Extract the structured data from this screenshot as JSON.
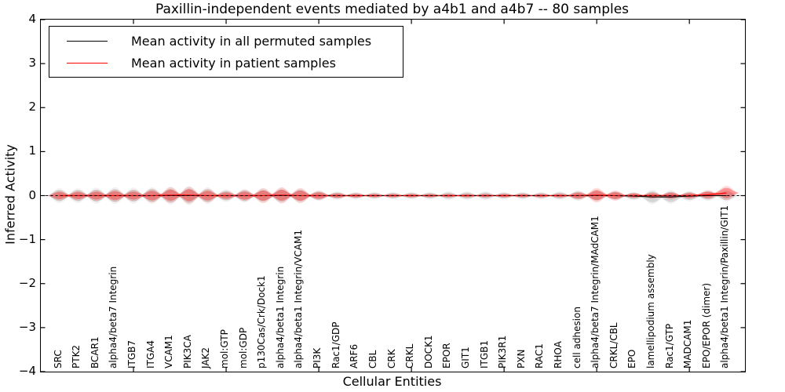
{
  "title": "Paxillin-independent events mediated by a4b1 and a4b7 -- 80 samples",
  "axes": {
    "xlabel": "Cellular Entities",
    "ylabel": "Inferred Activity",
    "yticks": [
      "4",
      "3",
      "2",
      "1",
      "0",
      "−1",
      "−2",
      "−3",
      "−4"
    ]
  },
  "legend": {
    "items": [
      {
        "label": "Mean activity in all permuted samples",
        "color": "#000000"
      },
      {
        "label": "Mean activity in patient samples",
        "color": "#ff0000"
      }
    ]
  },
  "chart_data": {
    "type": "violin",
    "title": "Paxillin-independent events mediated by a4b1 and a4b7 -- 80 samples",
    "xlabel": "Cellular Entities",
    "ylabel": "Inferred Activity",
    "ylim": [
      -4,
      4
    ],
    "xlim": [
      0,
      38
    ],
    "grid": false,
    "legend_position": "upper left",
    "xticks_every": 5,
    "zero_line": {
      "y": 0,
      "style": "dashed",
      "color": "#000000"
    },
    "categories": [
      "SRC",
      "PTK2",
      "BCAR1",
      "alpha4/beta7 Integrin",
      "ITGB7",
      "ITGA4",
      "VCAM1",
      "PIK3CA",
      "JAK2",
      "mol:GTP",
      "mol:GDP",
      "p130Cas/Crk/Dock1",
      "alpha4/beta1 Integrin",
      "alpha4/beta1 Integrin/VCAM1",
      "PI3K",
      "Rac1/GDP",
      "ARF6",
      "CBL",
      "CRK",
      "CRKL",
      "DOCK1",
      "EPOR",
      "GIT1",
      "ITGB1",
      "PIK3R1",
      "PXN",
      "RAC1",
      "RHOA",
      "cell adhesion",
      "alpha4/beta7 Integrin/MAdCAM1",
      "CRKL/CBL",
      "EPO",
      "lamellipodium assembly",
      "Rac1/GTP",
      "MADCAM1",
      "EPO/EPOR (dimer)",
      "alpha4/beta1 Integrin/Paxillin/GIT1"
    ],
    "series": [
      {
        "name": "Mean activity in all permuted samples",
        "line_color": "#000000",
        "fill_core": "rgba(0,0,0,0.115)",
        "fill_halo": "rgba(0,0,0,0.055)",
        "mean": [
          0,
          0,
          0,
          0,
          0,
          0,
          0,
          0,
          0,
          0,
          0,
          0,
          0,
          0,
          0,
          0,
          0,
          0,
          0,
          0,
          0,
          0,
          0,
          0,
          0,
          0,
          0,
          0,
          0,
          0,
          0,
          -0.01,
          -0.03,
          -0.03,
          -0.01,
          0,
          0
        ],
        "halfwidth": [
          0.125,
          0.125,
          0.134,
          0.143,
          0.134,
          0.143,
          0.151,
          0.16,
          0.143,
          0.107,
          0.116,
          0.125,
          0.134,
          0.125,
          0.089,
          0.071,
          0.062,
          0.062,
          0.062,
          0.062,
          0.062,
          0.071,
          0.071,
          0.071,
          0.062,
          0.062,
          0.062,
          0.071,
          0.089,
          0.098,
          0.08,
          0.071,
          0.125,
          0.116,
          0.089,
          0.089,
          0.098
        ]
      },
      {
        "name": "Mean activity in patient samples",
        "line_color": "#ff0000",
        "fill_core": "rgba(255,0,0,0.32)",
        "fill_halo": "rgba(255,0,0,0.13)",
        "mean": [
          0,
          0,
          0,
          0,
          0,
          0,
          0.01,
          0.01,
          0,
          0,
          0,
          0,
          0.01,
          0,
          0,
          0,
          0,
          0,
          0,
          0,
          0,
          0,
          0,
          0,
          0,
          0,
          0,
          0,
          0,
          0.01,
          0,
          0,
          0,
          0,
          0,
          0.02,
          0.06
        ],
        "halfwidth": [
          0.08,
          0.08,
          0.089,
          0.098,
          0.089,
          0.107,
          0.125,
          0.134,
          0.107,
          0.071,
          0.089,
          0.116,
          0.125,
          0.116,
          0.071,
          0.045,
          0.036,
          0.032,
          0.032,
          0.032,
          0.032,
          0.032,
          0.032,
          0.032,
          0.032,
          0.032,
          0.032,
          0.036,
          0.062,
          0.116,
          0.08,
          0.045,
          0.053,
          0.062,
          0.053,
          0.071,
          0.116
        ]
      }
    ]
  }
}
